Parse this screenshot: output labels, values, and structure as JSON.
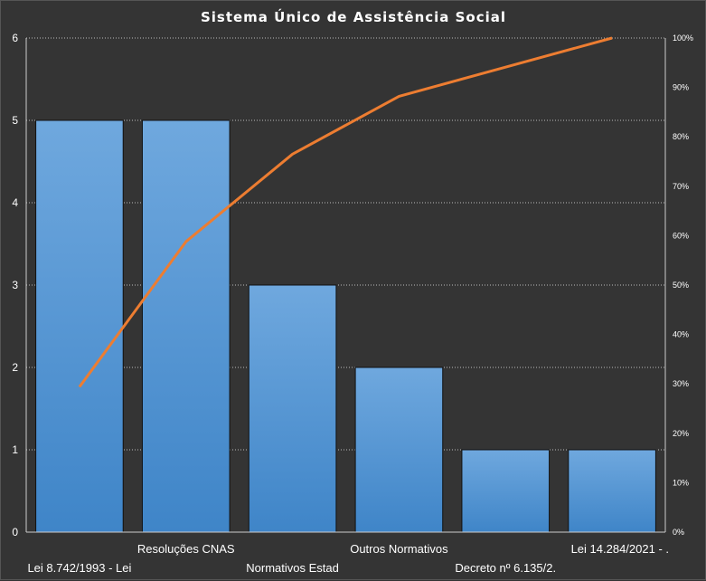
{
  "chart_data": {
    "type": "bar",
    "title": "Sistema Único de Assistência Social",
    "categories": [
      "Lei 8.742/1993 - Lei",
      "Resoluções CNAS",
      "Normativos Estad",
      "Outros Normativos",
      "Decreto nº 6.135/2.",
      "Lei 14.284/2021 - ."
    ],
    "values": [
      5,
      5,
      3,
      2,
      1,
      1
    ],
    "cumulative_percent": [
      29.4,
      58.8,
      76.5,
      88.2,
      94.1,
      100
    ],
    "ylim": [
      0,
      6
    ],
    "yticks": [
      "0",
      "1",
      "2",
      "3",
      "4",
      "5",
      "6"
    ],
    "y2lim": [
      0,
      100
    ],
    "y2ticks": [
      "0%",
      "10%",
      "20%",
      "30%",
      "40%",
      "50%",
      "60%",
      "70%",
      "80%",
      "90%",
      "100%"
    ],
    "grid": true,
    "colors": {
      "background": "#343434",
      "bar_top": "#6fa8de",
      "bar_bottom": "#3f85c8",
      "line": "#ed7d31",
      "text": "#ffffff",
      "grid": "#bbbbbb"
    }
  }
}
